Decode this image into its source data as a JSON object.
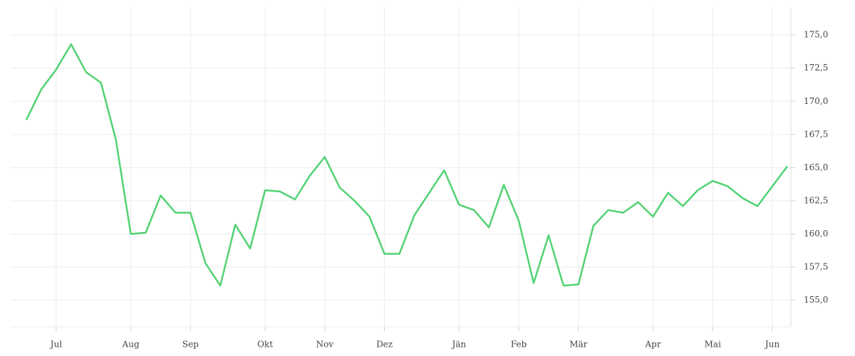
{
  "chart_data": {
    "type": "line",
    "categories": [
      null,
      null,
      "Jul",
      null,
      null,
      null,
      null,
      "Aug",
      null,
      null,
      null,
      "Sep",
      null,
      null,
      null,
      null,
      "Okt",
      null,
      null,
      null,
      "Nov",
      null,
      null,
      null,
      "Dez",
      null,
      null,
      null,
      null,
      "Jän",
      null,
      null,
      null,
      "Feb",
      null,
      null,
      null,
      "Mär",
      null,
      null,
      null,
      null,
      "Apr",
      null,
      null,
      null,
      "Mai",
      null,
      null,
      null,
      "Jun",
      null
    ],
    "series": [
      {
        "color": "#52d273",
        "values": [
          168.6,
          170.9,
          172.4,
          174.3,
          172.2,
          171.4,
          167.1,
          160.0,
          160.1,
          162.9,
          161.6,
          161.6,
          157.8,
          156.1,
          160.7,
          158.9,
          163.3,
          163.2,
          162.6,
          164.4,
          165.8,
          163.5,
          162.5,
          161.3,
          158.5,
          158.5,
          161.4,
          163.1,
          164.8,
          162.2,
          161.8,
          160.5,
          163.7,
          161.0,
          156.3,
          159.9,
          156.1,
          156.2,
          160.6,
          161.8,
          161.6,
          162.4,
          161.3,
          163.1,
          162.1,
          163.3,
          164.0,
          163.6,
          162.7,
          162.1,
          163.6,
          165.1
        ]
      }
    ],
    "ylim": [
      153.0,
      177.1
    ],
    "yticks": [
      {
        "value": 155,
        "label": "155,0"
      },
      {
        "value": 157.5,
        "label": "157,5"
      },
      {
        "value": 160,
        "label": "160,0"
      },
      {
        "value": 162.5,
        "label": "162,5"
      },
      {
        "value": 165,
        "label": "165,0"
      },
      {
        "value": 167.5,
        "label": "167,5"
      },
      {
        "value": 170,
        "label": "170,0"
      },
      {
        "value": 172.5,
        "label": "172,5"
      },
      {
        "value": 175,
        "label": "175,0"
      }
    ],
    "grid": true
  }
}
